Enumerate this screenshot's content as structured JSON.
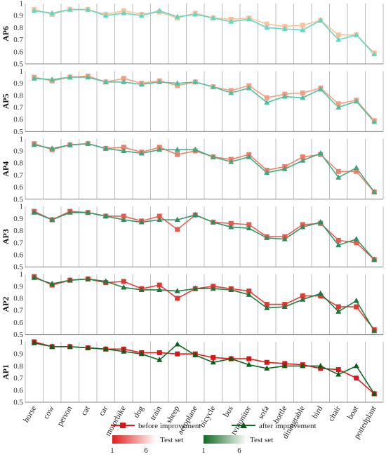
{
  "chart_data": {
    "type": "line",
    "categories": [
      "horse",
      "cow",
      "person",
      "cat",
      "car",
      "motorbike",
      "dog",
      "train",
      "sheep",
      "aeroplane",
      "bicycle",
      "bus",
      "tvmonitor",
      "sofa",
      "bottle",
      "diningtable",
      "bird",
      "chair",
      "boat",
      "pottedplant"
    ],
    "yticks": [
      "0.5",
      "0.6",
      "0.7",
      "0.8",
      "0.9",
      "1"
    ],
    "ylim": [
      0.5,
      1.0
    ],
    "grid": "vertical",
    "panels": [
      {
        "ylabel": "AP6",
        "series": [
          {
            "name": "before improvement",
            "values": [
              0.95,
              0.91,
              0.95,
              0.95,
              0.91,
              0.94,
              0.91,
              0.93,
              0.88,
              0.92,
              0.88,
              0.87,
              0.88,
              0.83,
              0.81,
              0.82,
              0.86,
              0.74,
              0.74,
              0.59
            ]
          },
          {
            "name": "after improvement",
            "values": [
              0.94,
              0.92,
              0.95,
              0.95,
              0.9,
              0.92,
              0.9,
              0.94,
              0.89,
              0.91,
              0.88,
              0.85,
              0.87,
              0.8,
              0.79,
              0.78,
              0.86,
              0.7,
              0.74,
              0.58
            ]
          }
        ]
      },
      {
        "ylabel": "AP5",
        "series": [
          {
            "name": "before improvement",
            "values": [
              0.95,
              0.92,
              0.95,
              0.96,
              0.91,
              0.94,
              0.9,
              0.92,
              0.88,
              0.91,
              0.87,
              0.84,
              0.88,
              0.78,
              0.81,
              0.82,
              0.86,
              0.73,
              0.76,
              0.59
            ]
          },
          {
            "name": "after improvement",
            "values": [
              0.94,
              0.93,
              0.95,
              0.95,
              0.91,
              0.91,
              0.89,
              0.91,
              0.9,
              0.91,
              0.87,
              0.82,
              0.86,
              0.74,
              0.79,
              0.78,
              0.85,
              0.7,
              0.75,
              0.58
            ]
          }
        ]
      },
      {
        "ylabel": "AP4",
        "series": [
          {
            "name": "before improvement",
            "values": [
              0.96,
              0.91,
              0.95,
              0.96,
              0.92,
              0.93,
              0.89,
              0.93,
              0.87,
              0.9,
              0.85,
              0.83,
              0.87,
              0.74,
              0.77,
              0.85,
              0.87,
              0.73,
              0.73,
              0.56
            ]
          },
          {
            "name": "after improvement",
            "values": [
              0.95,
              0.92,
              0.95,
              0.96,
              0.92,
              0.9,
              0.88,
              0.91,
              0.91,
              0.91,
              0.85,
              0.81,
              0.85,
              0.72,
              0.75,
              0.82,
              0.88,
              0.68,
              0.76,
              0.56
            ]
          }
        ]
      },
      {
        "ylabel": "AP3",
        "series": [
          {
            "name": "before improvement",
            "values": [
              0.96,
              0.89,
              0.96,
              0.95,
              0.92,
              0.92,
              0.88,
              0.92,
              0.81,
              0.93,
              0.87,
              0.86,
              0.85,
              0.75,
              0.75,
              0.85,
              0.86,
              0.72,
              0.7,
              0.56
            ]
          },
          {
            "name": "after improvement",
            "values": [
              0.95,
              0.89,
              0.95,
              0.95,
              0.92,
              0.89,
              0.87,
              0.89,
              0.89,
              0.93,
              0.87,
              0.83,
              0.82,
              0.74,
              0.73,
              0.83,
              0.87,
              0.68,
              0.73,
              0.56
            ]
          }
        ]
      },
      {
        "ylabel": "AP2",
        "series": [
          {
            "name": "before improvement",
            "values": [
              0.98,
              0.91,
              0.95,
              0.96,
              0.93,
              0.94,
              0.88,
              0.91,
              0.8,
              0.88,
              0.9,
              0.88,
              0.86,
              0.75,
              0.75,
              0.82,
              0.82,
              0.73,
              0.73,
              0.54
            ]
          },
          {
            "name": "after improvement",
            "values": [
              0.97,
              0.92,
              0.95,
              0.96,
              0.94,
              0.89,
              0.87,
              0.87,
              0.86,
              0.88,
              0.88,
              0.87,
              0.83,
              0.72,
              0.73,
              0.79,
              0.84,
              0.69,
              0.78,
              0.53
            ]
          }
        ]
      },
      {
        "ylabel": "AP1",
        "series": [
          {
            "name": "before improvement",
            "values": [
              1.0,
              0.96,
              0.96,
              0.95,
              0.94,
              0.94,
              0.91,
              0.91,
              0.9,
              0.9,
              0.87,
              0.86,
              0.86,
              0.83,
              0.82,
              0.81,
              0.78,
              0.77,
              0.7,
              0.57
            ]
          },
          {
            "name": "after improvement",
            "values": [
              0.99,
              0.96,
              0.96,
              0.95,
              0.94,
              0.92,
              0.9,
              0.85,
              0.98,
              0.89,
              0.83,
              0.86,
              0.81,
              0.78,
              0.8,
              0.8,
              0.8,
              0.73,
              0.8,
              0.57
            ]
          }
        ]
      }
    ],
    "legend": {
      "before_label": "before improvement",
      "after_label": "after improvement",
      "testset_label": "Test set",
      "scale_start": "1",
      "scale_end": "6",
      "placement": "bottom-center"
    },
    "colors": {
      "before_dark": "#e01c1c",
      "before_light": "#f9c39a",
      "after_dark": "#0e6a22",
      "after_light": "#5fd8c4",
      "marker_dark_before": "#d81818",
      "marker_dark_after": "#0b5d1c",
      "grid": "#bdbdbd",
      "axis": "#888888"
    }
  }
}
